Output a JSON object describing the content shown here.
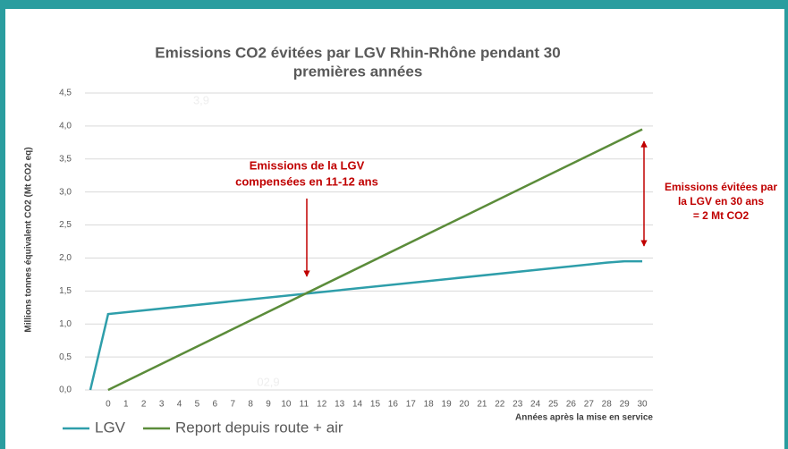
{
  "chart_data": {
    "type": "line",
    "title": [
      "Emissions CO2 évitées par LGV Rhin-Rhône pendant 30",
      "premières années"
    ],
    "x_label": "Années après la mise en service",
    "y_label": "Millions tonnes équivalent CO2 (Mt CO2 eq)",
    "xlim": [
      -1.3,
      30.6
    ],
    "xticks": [
      0,
      1,
      2,
      3,
      4,
      5,
      6,
      7,
      8,
      9,
      10,
      11,
      12,
      13,
      14,
      15,
      16,
      17,
      18,
      19,
      20,
      21,
      22,
      23,
      24,
      25,
      26,
      27,
      28,
      29,
      30
    ],
    "ylim": [
      0,
      4.5
    ],
    "yticks": [
      {
        "value": 0,
        "label": "0,0"
      },
      {
        "value": 0.5,
        "label": "0,5"
      },
      {
        "value": 1,
        "label": "1,0"
      },
      {
        "value": 1.5,
        "label": "1,5"
      },
      {
        "value": 2,
        "label": "2,0"
      },
      {
        "value": 2.5,
        "label": "2,5"
      },
      {
        "value": 3,
        "label": "3,0"
      },
      {
        "value": 3.5,
        "label": "3,5"
      },
      {
        "value": 4,
        "label": "4,0"
      },
      {
        "value": 4.5,
        "label": "4,5"
      }
    ],
    "grid": true,
    "series": [
      {
        "name": "LGV",
        "color": "#2e9eaa",
        "x": [
          -1,
          0,
          28,
          29,
          30
        ],
        "values": [
          0,
          1.15,
          1.93,
          1.95,
          1.95
        ]
      },
      {
        "name": "Report depuis route + air",
        "color": "#5b8c3a",
        "x": [
          0,
          30
        ],
        "values": [
          0,
          3.95
        ]
      }
    ],
    "annotations": [
      {
        "text": [
          "Emissions de la LGV",
          "compensées en 11-12 ans"
        ],
        "color": "#c00000"
      },
      {
        "text": [
          "Emissions évitées par",
          "la LGV en 30 ans",
          "= 2 Mt CO2"
        ],
        "color": "#c00000"
      }
    ],
    "ghost_labels": [
      "3,9",
      "02,9"
    ]
  }
}
